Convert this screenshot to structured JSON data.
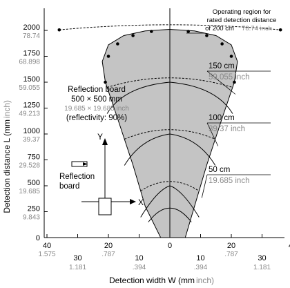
{
  "chart_data": {
    "type": "area",
    "xlabel": "Detection width W (mm",
    "xlabel_unit": "inch)",
    "ylabel": "Detection distance L (mm",
    "ylabel_unit": "inch)",
    "xlim": [
      -45,
      45
    ],
    "ylim": [
      0,
      2080
    ],
    "y_ticks": [
      {
        "value": 0,
        "label": "0",
        "sub": ""
      },
      {
        "value": 250,
        "label": "250",
        "sub": "9.843"
      },
      {
        "value": 500,
        "label": "500",
        "sub": "19.685"
      },
      {
        "value": 750,
        "label": "750",
        "sub": "29.528"
      },
      {
        "value": 1000,
        "label": "1000",
        "sub": "39.37"
      },
      {
        "value": 1250,
        "label": "1250",
        "sub": "49.213"
      },
      {
        "value": 1500,
        "label": "1500",
        "sub": "59.055"
      },
      {
        "value": 1750,
        "label": "1750",
        "sub": "68.898"
      },
      {
        "value": 2000,
        "label": "2000",
        "sub": "78.74"
      }
    ],
    "x_ticks": [
      {
        "value": -40,
        "label": "40",
        "sub": "1.575"
      },
      {
        "value": -30,
        "label": "30",
        "sub": "1.181"
      },
      {
        "value": -20,
        "label": "20",
        "sub": ".787"
      },
      {
        "value": -10,
        "label": "10",
        "sub": ".394"
      },
      {
        "value": 0,
        "label": "0",
        "sub": ""
      },
      {
        "value": 10,
        "label": "10",
        "sub": ".394"
      },
      {
        "value": 20,
        "label": "20",
        "sub": ".787"
      },
      {
        "value": 30,
        "label": "30",
        "sub": "1.181"
      },
      {
        "value": 40,
        "label": "40",
        "sub": ""
      }
    ],
    "region_boundary": [
      {
        "x": -3,
        "y": 0
      },
      {
        "x": -8,
        "y": 300
      },
      {
        "x": -12,
        "y": 700
      },
      {
        "x": -17,
        "y": 1150
      },
      {
        "x": -21,
        "y": 1500
      },
      {
        "x": -22,
        "y": 1700
      },
      {
        "x": -20,
        "y": 1860
      },
      {
        "x": -15,
        "y": 1950
      },
      {
        "x": -8,
        "y": 1995
      },
      {
        "x": 0,
        "y": 2010
      },
      {
        "x": 8,
        "y": 1995
      },
      {
        "x": 15,
        "y": 1950
      },
      {
        "x": 20,
        "y": 1860
      },
      {
        "x": 22,
        "y": 1700
      },
      {
        "x": 21,
        "y": 1500
      },
      {
        "x": 17,
        "y": 1150
      },
      {
        "x": 12,
        "y": 700
      },
      {
        "x": 8,
        "y": 300
      },
      {
        "x": 5,
        "y": 0
      }
    ],
    "rated_points": [
      {
        "x": -21,
        "y": 1500
      },
      {
        "x": -20,
        "y": 1750
      },
      {
        "x": -17,
        "y": 1870
      },
      {
        "x": -12,
        "y": 1950
      },
      {
        "x": -6,
        "y": 1990
      },
      {
        "x": 6,
        "y": 1990
      },
      {
        "x": 12,
        "y": 1950
      },
      {
        "x": 17,
        "y": 1870
      },
      {
        "x": 20,
        "y": 1750
      },
      {
        "x": 21,
        "y": 1500
      },
      {
        "x": -36,
        "y": 2005
      },
      {
        "x": 36,
        "y": 2005
      }
    ],
    "level_arcs": [
      {
        "y_edge": 450,
        "y_center": 500,
        "label": "50 cm",
        "sub": "19.685 inch"
      },
      {
        "y_edge": 950,
        "y_center": 1000,
        "label": "100 cm",
        "sub": "39.37 inch"
      },
      {
        "y_edge": 1450,
        "y_center": 1500,
        "label": "150 cm",
        "sub": "59.055 inch"
      }
    ],
    "top_note": [
      "Operating region for",
      "rated detection distance",
      "of 200 cm"
    ],
    "top_note_sub": "78.74 inch",
    "board_note": [
      "Reflection board",
      "500 × 500 mm"
    ],
    "board_note_sub": "19.685 × 19.685 inch",
    "board_note_refl": "(reflectivity: 90%)",
    "inset": {
      "y_label": "Y",
      "x_label": "X",
      "board_label": [
        "Reflection",
        "board"
      ]
    }
  }
}
